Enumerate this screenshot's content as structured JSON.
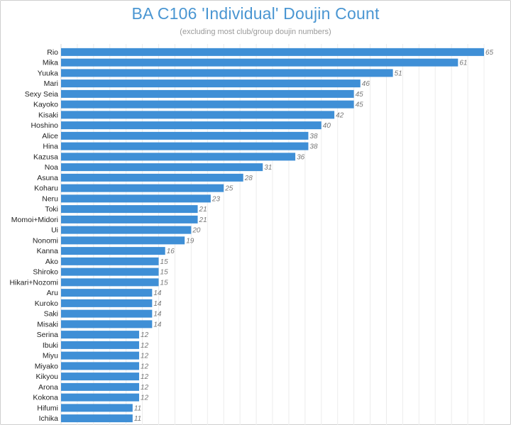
{
  "chart_data": {
    "type": "bar",
    "orientation": "horizontal",
    "title": "BA C106 'Individual' Doujin Count",
    "subtitle": "(excluding most club/group doujin numbers)",
    "xlabel": "",
    "ylabel": "",
    "xlim": [
      0,
      65
    ],
    "grid": true,
    "bar_color": "#3f8fd6",
    "title_color": "#4a96d2",
    "categories": [
      "Rio",
      "Mika",
      "Yuuka",
      "Mari",
      "Sexy Seia",
      "Kayoko",
      "Kisaki",
      "Hoshino",
      "Alice",
      "Hina",
      "Kazusa",
      "Noa",
      "Asuna",
      "Koharu",
      "Neru",
      "Toki",
      "Momoi+Midori",
      "Ui",
      "Nonomi",
      "Kanna",
      "Ako",
      "Shiroko",
      "Hikari+Nozomi",
      "Aru",
      "Kuroko",
      "Saki",
      "Misaki",
      "Serina",
      "Ibuki",
      "Miyu",
      "Miyako",
      "Kikyou",
      "Arona",
      "Kokona",
      "Hifumi",
      "Ichika"
    ],
    "values": [
      65,
      61,
      51,
      46,
      45,
      45,
      42,
      40,
      38,
      38,
      36,
      31,
      28,
      25,
      23,
      21,
      21,
      20,
      19,
      16,
      15,
      15,
      15,
      14,
      14,
      14,
      14,
      12,
      12,
      12,
      12,
      12,
      12,
      12,
      11,
      11
    ]
  }
}
